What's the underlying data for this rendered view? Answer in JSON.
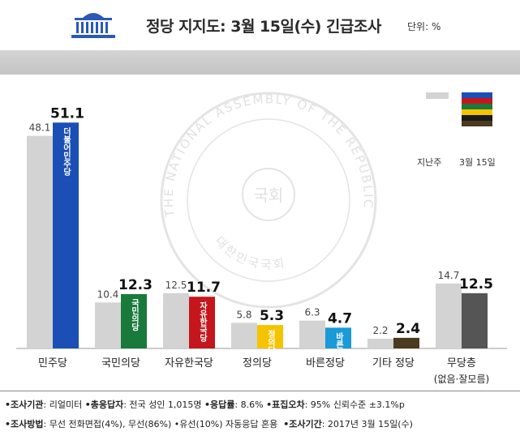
{
  "header": {
    "title": "정당 지지도: 3월 15일(수) 긴급조사",
    "unit": "단위: %"
  },
  "legend": {
    "prev": "지난주",
    "cur": "3월 15일"
  },
  "chart_data": {
    "type": "bar",
    "categories": [
      "민주당",
      "국민의당",
      "자유한국당",
      "정의당",
      "바른정당",
      "기타 정당",
      "무당층"
    ],
    "category_notes": [
      "",
      "",
      "",
      "",
      "",
      "",
      "(없음·잘모름)"
    ],
    "series": [
      {
        "name": "지난주",
        "values": [
          48.1,
          10.4,
          12.5,
          5.8,
          6.3,
          2.2,
          14.7
        ],
        "color": "#d3d3d3"
      },
      {
        "name": "3월 15일",
        "values": [
          51.1,
          12.3,
          11.7,
          5.3,
          4.7,
          2.4,
          12.5
        ],
        "colors": [
          "#1b4fb6",
          "#1a7a3c",
          "#c4161c",
          "#f5c400",
          "#1a9ad6",
          "#4a3a20",
          "#555555"
        ]
      }
    ],
    "prev_labels": [
      "48.1",
      "10.4",
      "12.5",
      "5.8",
      "6.3",
      "2.2",
      "14.7"
    ],
    "cur_labels": [
      "51.1",
      "12.3",
      "11.7",
      "5.3",
      "4.7",
      "2.4",
      "12.5"
    ],
    "ylim": [
      0,
      55
    ],
    "party_logos": [
      "더불어민주당",
      "국민의당",
      "자유한국당",
      "정의당",
      "바른정당",
      "",
      ""
    ]
  },
  "watermark": {
    "outer_text": "THE NATIONAL ASSEMBLY OF THE REPUBLIC OF KOREA",
    "inner_text": "대한민국국회",
    "center_text": "국회"
  },
  "footer": {
    "line1": [
      {
        "label": "•조사기관",
        "value": ": 리얼미터"
      },
      {
        "label": "•총응답자",
        "value": ": 전국 성인 1,015명"
      },
      {
        "label": "•응답률",
        "value": ": 8.6%"
      },
      {
        "label": "•표집오차",
        "value": ": 95% 신뢰수준 ±3.1%p"
      }
    ],
    "line2": [
      {
        "label": "•조사방법",
        "value": ": 무선 전화면접(4%), 무선(86%) •유선(10%) 자동응답 혼용"
      },
      {
        "label": "•조사기간",
        "value": ": 2017년 3월 15일(수)"
      }
    ]
  }
}
